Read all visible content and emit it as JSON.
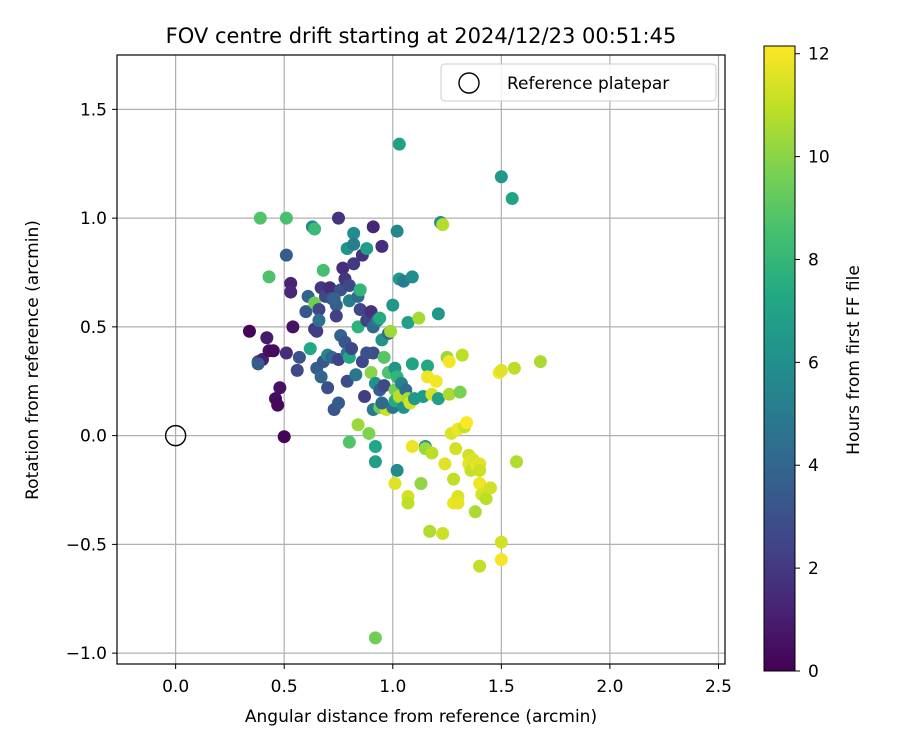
{
  "chart_data": {
    "type": "scatter",
    "title": "FOV centre drift starting at 2024/12/23 00:51:45",
    "xlabel": "Angular distance from reference (arcmin)",
    "ylabel": "Rotation from reference (arcmin)",
    "xlim": [
      -0.27,
      2.53
    ],
    "ylim": [
      -1.05,
      1.75
    ],
    "xticks": [
      0.0,
      0.5,
      1.0,
      1.5,
      2.0,
      2.5
    ],
    "xtick_labels": [
      "0.0",
      "0.5",
      "1.0",
      "1.5",
      "2.0",
      "2.5"
    ],
    "yticks": [
      -1.0,
      -0.5,
      0.0,
      0.5,
      1.0,
      1.5
    ],
    "ytick_labels": [
      "−1.0",
      "−0.5",
      "0.0",
      "0.5",
      "1.0",
      "1.5"
    ],
    "grid": true,
    "legend": {
      "placement": "top-right",
      "entries": [
        {
          "label": "Reference platepar",
          "marker": "open-circle"
        }
      ]
    },
    "reference_point": {
      "x": 0.0,
      "y": 0.0,
      "label": "Reference platepar"
    },
    "colorbar": {
      "label": "Hours from first FF file",
      "colormap": "viridis",
      "range": [
        0,
        12.15
      ],
      "ticks": [
        0,
        2,
        4,
        6,
        8,
        10,
        12
      ],
      "tick_labels": [
        "0",
        "2",
        "4",
        "6",
        "8",
        "10",
        "12"
      ]
    },
    "points": [
      {
        "x": 0.34,
        "y": 0.48,
        "c": 0.1
      },
      {
        "x": 0.38,
        "y": 0.34,
        "c": 2.8
      },
      {
        "x": 0.4,
        "y": 0.35,
        "c": 1.0
      },
      {
        "x": 0.42,
        "y": 0.45,
        "c": 0.9
      },
      {
        "x": 0.43,
        "y": 0.39,
        "c": 0.5
      },
      {
        "x": 0.45,
        "y": 0.39,
        "c": 0.3
      },
      {
        "x": 0.46,
        "y": 0.17,
        "c": 0.4
      },
      {
        "x": 0.47,
        "y": 0.14,
        "c": 0.2
      },
      {
        "x": 0.48,
        "y": 0.22,
        "c": 0.6
      },
      {
        "x": 0.5,
        "y": -0.005,
        "c": 0.1
      },
      {
        "x": 0.51,
        "y": 0.38,
        "c": 1.6
      },
      {
        "x": 0.51,
        "y": 0.83,
        "c": 3.5
      },
      {
        "x": 0.53,
        "y": 0.7,
        "c": 1.2
      },
      {
        "x": 0.53,
        "y": 0.66,
        "c": 1.4
      },
      {
        "x": 0.54,
        "y": 0.5,
        "c": 0.6
      },
      {
        "x": 0.56,
        "y": 0.3,
        "c": 2.6
      },
      {
        "x": 0.57,
        "y": 0.36,
        "c": 3.1
      },
      {
        "x": 0.6,
        "y": 0.57,
        "c": 3.3
      },
      {
        "x": 0.61,
        "y": 0.64,
        "c": 3.9
      },
      {
        "x": 0.62,
        "y": 0.4,
        "c": 7.3
      },
      {
        "x": 0.63,
        "y": 0.96,
        "c": 5.5
      },
      {
        "x": 0.64,
        "y": 0.95,
        "c": 8.2
      },
      {
        "x": 0.64,
        "y": 0.61,
        "c": 9.5
      },
      {
        "x": 0.64,
        "y": 0.49,
        "c": 1.9
      },
      {
        "x": 0.65,
        "y": 0.48,
        "c": 2.2
      },
      {
        "x": 0.65,
        "y": 0.31,
        "c": 3.5
      },
      {
        "x": 0.66,
        "y": 0.58,
        "c": 2.5
      },
      {
        "x": 0.66,
        "y": 0.53,
        "c": 4.5
      },
      {
        "x": 0.67,
        "y": 0.27,
        "c": 4.0
      },
      {
        "x": 0.67,
        "y": 0.68,
        "c": 2.0
      },
      {
        "x": 0.68,
        "y": 0.34,
        "c": 3.3
      },
      {
        "x": 0.68,
        "y": 0.76,
        "c": 8.5
      },
      {
        "x": 0.69,
        "y": 0.64,
        "c": 2.7
      },
      {
        "x": 0.7,
        "y": 0.22,
        "c": 2.9
      },
      {
        "x": 0.7,
        "y": 0.37,
        "c": 5.5
      },
      {
        "x": 0.71,
        "y": 0.68,
        "c": 1.5
      },
      {
        "x": 0.72,
        "y": 0.63,
        "c": 3.1
      },
      {
        "x": 0.72,
        "y": 0.36,
        "c": 4.1
      },
      {
        "x": 0.73,
        "y": 0.12,
        "c": 3.2
      },
      {
        "x": 0.74,
        "y": 0.6,
        "c": 3.7
      },
      {
        "x": 0.74,
        "y": 0.55,
        "c": 2.3
      },
      {
        "x": 0.75,
        "y": 1.0,
        "c": 1.8
      },
      {
        "x": 0.75,
        "y": 0.35,
        "c": 2.4
      },
      {
        "x": 0.75,
        "y": 0.15,
        "c": 3.5
      },
      {
        "x": 0.76,
        "y": 0.67,
        "c": 3.0
      },
      {
        "x": 0.76,
        "y": 0.46,
        "c": 3.9
      },
      {
        "x": 0.77,
        "y": 0.77,
        "c": 1.6
      },
      {
        "x": 0.78,
        "y": 0.72,
        "c": 1.9
      },
      {
        "x": 0.78,
        "y": 0.43,
        "c": 3.2
      },
      {
        "x": 0.79,
        "y": 0.86,
        "c": 6.2
      },
      {
        "x": 0.79,
        "y": 0.38,
        "c": 4.8
      },
      {
        "x": 0.79,
        "y": 0.25,
        "c": 2.9
      },
      {
        "x": 0.8,
        "y": 0.69,
        "c": 2.7
      },
      {
        "x": 0.8,
        "y": 0.62,
        "c": 5.2
      },
      {
        "x": 0.8,
        "y": 0.36,
        "c": 7.3
      },
      {
        "x": 0.8,
        "y": -0.03,
        "c": 8.8
      },
      {
        "x": 0.81,
        "y": 0.4,
        "c": 2.6
      },
      {
        "x": 0.82,
        "y": 0.93,
        "c": 5.9
      },
      {
        "x": 0.82,
        "y": 0.79,
        "c": 2.0
      },
      {
        "x": 0.82,
        "y": 0.88,
        "c": 5.2
      },
      {
        "x": 0.83,
        "y": 0.28,
        "c": 4.8
      },
      {
        "x": 0.84,
        "y": 0.64,
        "c": 4.4
      },
      {
        "x": 0.84,
        "y": 0.5,
        "c": 7.8
      },
      {
        "x": 0.84,
        "y": 0.05,
        "c": 10.3
      },
      {
        "x": 0.85,
        "y": 0.67,
        "c": 8.0
      },
      {
        "x": 0.85,
        "y": 0.58,
        "c": 2.5
      },
      {
        "x": 0.86,
        "y": 0.83,
        "c": 1.7
      },
      {
        "x": 0.86,
        "y": 0.34,
        "c": 2.6
      },
      {
        "x": 0.87,
        "y": 0.18,
        "c": 2.2
      },
      {
        "x": 0.88,
        "y": 0.86,
        "c": 6.7
      },
      {
        "x": 0.88,
        "y": 0.53,
        "c": 2.4
      },
      {
        "x": 0.89,
        "y": 0.01,
        "c": 9.8
      },
      {
        "x": 0.9,
        "y": 0.29,
        "c": 10.0
      },
      {
        "x": 0.9,
        "y": 0.57,
        "c": 1.7
      },
      {
        "x": 0.91,
        "y": 0.96,
        "c": 1.3
      },
      {
        "x": 0.91,
        "y": 0.5,
        "c": 4.2
      },
      {
        "x": 0.91,
        "y": 0.38,
        "c": 2.9
      },
      {
        "x": 0.91,
        "y": 0.12,
        "c": 4.9
      },
      {
        "x": 0.92,
        "y": -0.05,
        "c": 7.2
      },
      {
        "x": 0.92,
        "y": -0.12,
        "c": 6.7
      },
      {
        "x": 0.92,
        "y": -0.93,
        "c": 9.5
      },
      {
        "x": 0.92,
        "y": 0.24,
        "c": 6.1
      },
      {
        "x": 0.93,
        "y": 0.53,
        "c": 5.2
      },
      {
        "x": 0.94,
        "y": 0.54,
        "c": 7.4
      },
      {
        "x": 0.94,
        "y": 0.13,
        "c": 9.4
      },
      {
        "x": 0.94,
        "y": 0.21,
        "c": 3.6
      },
      {
        "x": 0.95,
        "y": 0.87,
        "c": 1.6
      },
      {
        "x": 0.95,
        "y": 0.44,
        "c": 6.2
      },
      {
        "x": 0.96,
        "y": 0.23,
        "c": 2.7
      },
      {
        "x": 0.96,
        "y": 0.36,
        "c": 8.9
      },
      {
        "x": 0.97,
        "y": 0.12,
        "c": 11.2
      },
      {
        "x": 0.98,
        "y": 0.47,
        "c": 4.3
      },
      {
        "x": 0.98,
        "y": 0.29,
        "c": 8.7
      },
      {
        "x": 0.99,
        "y": 0.48,
        "c": 10.4
      },
      {
        "x": 1.0,
        "y": 0.6,
        "c": 6.4
      },
      {
        "x": 1.0,
        "y": 0.13,
        "c": 4.6
      },
      {
        "x": 1.01,
        "y": 0.31,
        "c": 6.3
      },
      {
        "x": 1.01,
        "y": 0.21,
        "c": 9.6
      },
      {
        "x": 1.01,
        "y": 0.16,
        "c": 7.4
      },
      {
        "x": 1.01,
        "y": -0.22,
        "c": 11.6
      },
      {
        "x": 1.02,
        "y": 0.27,
        "c": 7.9
      },
      {
        "x": 1.02,
        "y": 0.94,
        "c": 5.6
      },
      {
        "x": 1.02,
        "y": -0.16,
        "c": 5.8
      },
      {
        "x": 1.03,
        "y": 1.34,
        "c": 6.8
      },
      {
        "x": 1.03,
        "y": 0.72,
        "c": 6.6
      },
      {
        "x": 1.03,
        "y": 0.18,
        "c": 10.9
      },
      {
        "x": 1.04,
        "y": 0.24,
        "c": 5.4
      },
      {
        "x": 1.05,
        "y": 0.71,
        "c": 5.0
      },
      {
        "x": 1.05,
        "y": 0.13,
        "c": 6.1
      },
      {
        "x": 1.06,
        "y": 0.21,
        "c": 4.4
      },
      {
        "x": 1.07,
        "y": -0.28,
        "c": 11.3
      },
      {
        "x": 1.07,
        "y": -0.31,
        "c": 11.0
      },
      {
        "x": 1.07,
        "y": 0.52,
        "c": 6.8
      },
      {
        "x": 1.07,
        "y": 0.17,
        "c": 10.6
      },
      {
        "x": 1.08,
        "y": 0.15,
        "c": 11.4
      },
      {
        "x": 1.09,
        "y": 0.73,
        "c": 5.9
      },
      {
        "x": 1.09,
        "y": 0.33,
        "c": 7.0
      },
      {
        "x": 1.09,
        "y": -0.05,
        "c": 11.8
      },
      {
        "x": 1.1,
        "y": 0.17,
        "c": 6.5
      },
      {
        "x": 1.12,
        "y": 0.54,
        "c": 10.5
      },
      {
        "x": 1.13,
        "y": -0.22,
        "c": 10.1
      },
      {
        "x": 1.14,
        "y": 0.18,
        "c": 6.6
      },
      {
        "x": 1.15,
        "y": -0.05,
        "c": 6.2
      },
      {
        "x": 1.15,
        "y": -0.06,
        "c": 10.3
      },
      {
        "x": 1.16,
        "y": 0.32,
        "c": 7.3
      },
      {
        "x": 1.16,
        "y": 0.27,
        "c": 11.9
      },
      {
        "x": 1.17,
        "y": -0.44,
        "c": 10.7
      },
      {
        "x": 1.18,
        "y": 0.19,
        "c": 11.4
      },
      {
        "x": 1.18,
        "y": -0.08,
        "c": 10.9
      },
      {
        "x": 1.2,
        "y": 0.25,
        "c": 12.0
      },
      {
        "x": 1.21,
        "y": 0.17,
        "c": 6.8
      },
      {
        "x": 1.21,
        "y": 0.56,
        "c": 6.4
      },
      {
        "x": 1.22,
        "y": 0.98,
        "c": 6.0
      },
      {
        "x": 1.23,
        "y": 0.97,
        "c": 10.8
      },
      {
        "x": 1.23,
        "y": -0.45,
        "c": 11.2
      },
      {
        "x": 1.24,
        "y": -0.13,
        "c": 11.6
      },
      {
        "x": 1.25,
        "y": 0.36,
        "c": 10.3
      },
      {
        "x": 1.26,
        "y": 0.34,
        "c": 12.0
      },
      {
        "x": 1.26,
        "y": 0.19,
        "c": 10.6
      },
      {
        "x": 1.27,
        "y": 0.01,
        "c": 11.5
      },
      {
        "x": 1.28,
        "y": -0.2,
        "c": 11.0
      },
      {
        "x": 1.28,
        "y": -0.31,
        "c": 11.8
      },
      {
        "x": 1.29,
        "y": -0.06,
        "c": 11.3
      },
      {
        "x": 1.3,
        "y": -0.28,
        "c": 11.5
      },
      {
        "x": 1.3,
        "y": 0.03,
        "c": 11.9
      },
      {
        "x": 1.3,
        "y": -0.31,
        "c": 11.7
      },
      {
        "x": 1.31,
        "y": 0.2,
        "c": 9.7
      },
      {
        "x": 1.32,
        "y": 0.37,
        "c": 10.9
      },
      {
        "x": 1.33,
        "y": 0.04,
        "c": 11.2
      },
      {
        "x": 1.34,
        "y": 0.06,
        "c": 12.1
      },
      {
        "x": 1.35,
        "y": -0.09,
        "c": 11.3
      },
      {
        "x": 1.35,
        "y": -0.13,
        "c": 11.7
      },
      {
        "x": 1.36,
        "y": -0.16,
        "c": 11.1
      },
      {
        "x": 1.37,
        "y": -0.11,
        "c": 11.5
      },
      {
        "x": 1.38,
        "y": -0.35,
        "c": 10.6
      },
      {
        "x": 1.39,
        "y": -0.14,
        "c": 11.8
      },
      {
        "x": 1.4,
        "y": -0.13,
        "c": 11.6
      },
      {
        "x": 1.4,
        "y": -0.16,
        "c": 11.2
      },
      {
        "x": 1.4,
        "y": -0.22,
        "c": 11.9
      },
      {
        "x": 1.4,
        "y": -0.6,
        "c": 11.0
      },
      {
        "x": 1.41,
        "y": -0.27,
        "c": 11.4
      },
      {
        "x": 1.43,
        "y": -0.29,
        "c": 10.9
      },
      {
        "x": 1.45,
        "y": -0.24,
        "c": 11.3
      },
      {
        "x": 1.49,
        "y": 0.29,
        "c": 12.0
      },
      {
        "x": 1.5,
        "y": 0.3,
        "c": 11.6
      },
      {
        "x": 1.5,
        "y": 1.19,
        "c": 6.5
      },
      {
        "x": 1.5,
        "y": -0.49,
        "c": 11.3
      },
      {
        "x": 1.5,
        "y": -0.57,
        "c": 12.0
      },
      {
        "x": 1.55,
        "y": 1.09,
        "c": 7.0
      },
      {
        "x": 1.56,
        "y": 0.31,
        "c": 10.9
      },
      {
        "x": 1.57,
        "y": -0.12,
        "c": 10.7
      },
      {
        "x": 1.68,
        "y": 0.34,
        "c": 10.6
      },
      {
        "x": 0.39,
        "y": 1.0,
        "c": 8.8
      },
      {
        "x": 0.51,
        "y": 1.0,
        "c": 8.6
      },
      {
        "x": 0.43,
        "y": 0.73,
        "c": 8.7
      },
      {
        "x": 0.38,
        "y": 0.33,
        "c": 3.5
      },
      {
        "x": 0.73,
        "y": 0.63,
        "c": 3.8
      },
      {
        "x": 0.88,
        "y": 0.38,
        "c": 3.0
      },
      {
        "x": 0.95,
        "y": 0.15,
        "c": 4.2
      }
    ]
  }
}
